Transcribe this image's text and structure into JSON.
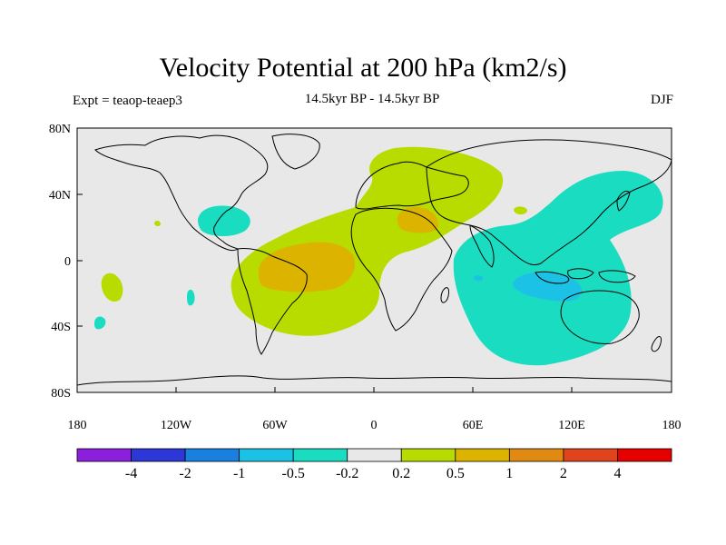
{
  "title": "Velocity Potential at 200 hPa (km2/s)",
  "subtitle": "14.5kyr BP - 14.5kyr BP",
  "left_label": "Expt = teaop-teaep3",
  "right_label": "DJF",
  "axes": {
    "x_ticks": [
      "180",
      "120W",
      "60W",
      "0",
      "60E",
      "120E",
      "180"
    ],
    "y_ticks": [
      "80N",
      "40N",
      "0",
      "40S",
      "80S"
    ]
  },
  "colorbar": {
    "labels": [
      "-4",
      "-2",
      "-1",
      "-0.5",
      "-0.2",
      "0.2",
      "0.5",
      "1",
      "2",
      "4"
    ],
    "colors": [
      "#8c1fdc",
      "#2d36d6",
      "#1a80e0",
      "#1cc2e6",
      "#19dcc0",
      "#e8e8e8",
      "#b8dc00",
      "#dcb400",
      "#e08a14",
      "#e0441c",
      "#e60000"
    ]
  },
  "colors": {
    "ocean_land_neutral": "#e8e8e8",
    "positive_weak": "#b8dc00",
    "positive_mid": "#dcb400",
    "negative_weak": "#19dcc0",
    "negative_mid": "#1cc2e6"
  }
}
